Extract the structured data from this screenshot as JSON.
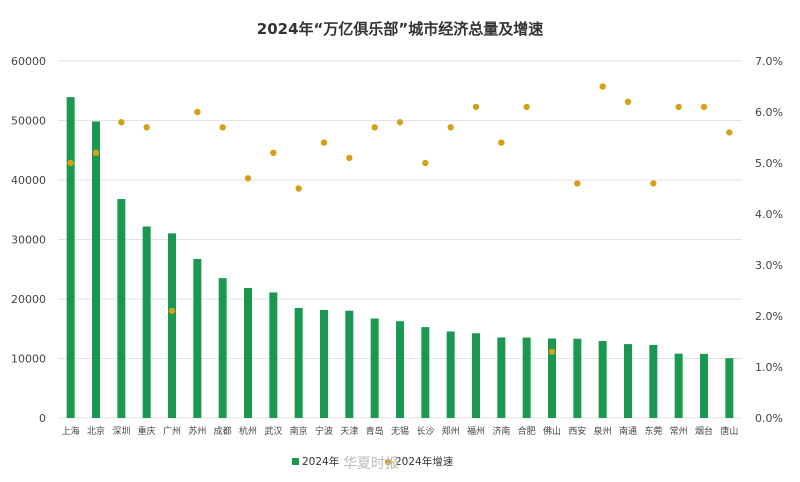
{
  "chart_data": {
    "type": "bar",
    "title": "2024年“万亿俱乐部”城市经济总量及增速",
    "categories": [
      "上海",
      "北京",
      "深圳",
      "重庆",
      "广州",
      "苏州",
      "成都",
      "杭州",
      "武汉",
      "南京",
      "宁波",
      "天津",
      "青岛",
      "无锡",
      "长沙",
      "郑州",
      "福州",
      "济南",
      "合肥",
      "佛山",
      "西安",
      "泉州",
      "南通",
      "东莞",
      "常州",
      "烟台",
      "唐山"
    ],
    "series": [
      {
        "name": "2024年",
        "type": "bar",
        "axis": "left",
        "color": "#1a9850",
        "values": [
          53927,
          49843,
          36802,
          32193,
          31032,
          26727,
          23511,
          21860,
          21106,
          18501,
          18148,
          18024,
          16719,
          16263,
          15269,
          14533,
          14237,
          13528,
          13507,
          13362,
          13318,
          12946,
          12422,
          12282,
          10814,
          10780,
          10050
        ]
      },
      {
        "name": "2024年增速",
        "type": "scatter",
        "axis": "right",
        "color": "#d4a017",
        "values": [
          5.0,
          5.2,
          5.8,
          5.7,
          2.1,
          6.0,
          5.7,
          4.7,
          5.2,
          4.5,
          5.4,
          5.1,
          5.7,
          5.8,
          5.0,
          5.7,
          6.1,
          5.4,
          6.1,
          1.3,
          4.6,
          6.5,
          6.2,
          4.6,
          6.1,
          6.1,
          5.6
        ]
      }
    ],
    "y_left": {
      "lim": [
        0,
        60000
      ],
      "ticks": [
        "0",
        "10000",
        "20000",
        "30000",
        "40000",
        "50000",
        "60000"
      ]
    },
    "y_right": {
      "lim": [
        0,
        7
      ],
      "ticks": [
        "0.0%",
        "1.0%",
        "2.0%",
        "3.0%",
        "4.0%",
        "5.0%",
        "6.0%",
        "7.0%"
      ]
    },
    "grid": true,
    "legend_position": "bottom-center"
  },
  "watermark": "华夏时报"
}
